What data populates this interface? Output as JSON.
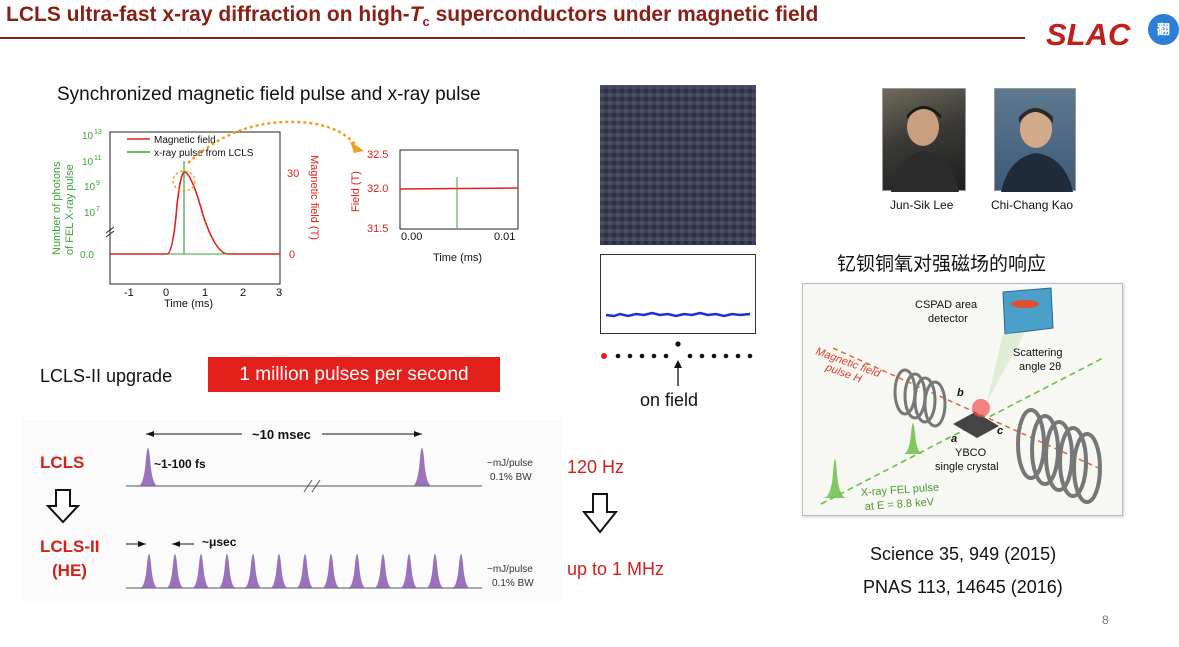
{
  "header": {
    "title_pre": "LCLS ultra-fast x-ray diffraction on high-",
    "title_T": "T",
    "title_sub": "c",
    "title_post": " superconductors under magnetic field",
    "logo": "SLAC",
    "translate_icon": "翻"
  },
  "sync_caption": "Synchronized magnetic field pulse and x-ray pulse",
  "left_plot": {
    "ylabel_left_1": "Number of photons",
    "ylabel_left_2": "of FEL X-ray pulse",
    "ylabel_right": "Magnetic field (T)",
    "xlabel": "Time (ms)",
    "x_ticks": [
      "-1",
      "0",
      "1",
      "2",
      "3"
    ],
    "y_left_ticks": [
      "10",
      "10",
      "10",
      "10",
      "0.0"
    ],
    "y_left_exps": [
      "13",
      "11",
      "9",
      "7",
      ""
    ],
    "y_right_ticks": [
      "30",
      "0"
    ],
    "legend": [
      "Magnetic field",
      "x-ray pulse from LCLS"
    ]
  },
  "right_plot": {
    "ylabel": "Field (T)",
    "xlabel": "Time (ms)",
    "y_ticks": [
      "32.5",
      "32.0",
      "31.5"
    ],
    "x_ticks": [
      "0.00",
      "0.01"
    ]
  },
  "detector": {
    "on_field": "on field"
  },
  "people": [
    {
      "name": "Jun-Sik Lee"
    },
    {
      "name": "Chi-Chang Kao"
    }
  ],
  "chinese_caption": "钇钡铜氧对强磁场的响应",
  "setup": {
    "cspad": "CSPAD area",
    "detector": "detector",
    "scattering": "Scattering",
    "angle": "angle 2θ",
    "mag1": "Magnetic field",
    "mag2": "pulse H",
    "b": "b",
    "a": "a",
    "c": "c",
    "ybco": "YBCO",
    "crystal": "single crystal",
    "xray1": "X-ray FEL pulse",
    "xray2": "at E = 8.8 keV"
  },
  "upgrade": {
    "label": "LCLS-II upgrade",
    "banner": "1 million pulses per second",
    "lcls": "LCLS",
    "lcls2a": "LCLS-II",
    "lcls2b": "(HE)",
    "msec": "~10 msec",
    "fs": "~1-100 fs",
    "usec": "~μsec",
    "mj1": "~mJ/pulse",
    "bw1": "0.1% BW",
    "mj2": "~mJ/pulse",
    "bw2": "0.1% BW",
    "hz1": "120 Hz",
    "hz2": "up to 1 MHz"
  },
  "refs": [
    "Science 35, 949 (2015)",
    "PNAS 113, 14645 (2016)"
  ],
  "page_number": "8",
  "colors": {
    "title": "#8a1f17",
    "banner": "#e3201b",
    "accent_red": "#d41f1a",
    "plot_red": "#e3201b",
    "plot_green": "#3aa33a",
    "pulse_purple": "#8a5bb0"
  }
}
